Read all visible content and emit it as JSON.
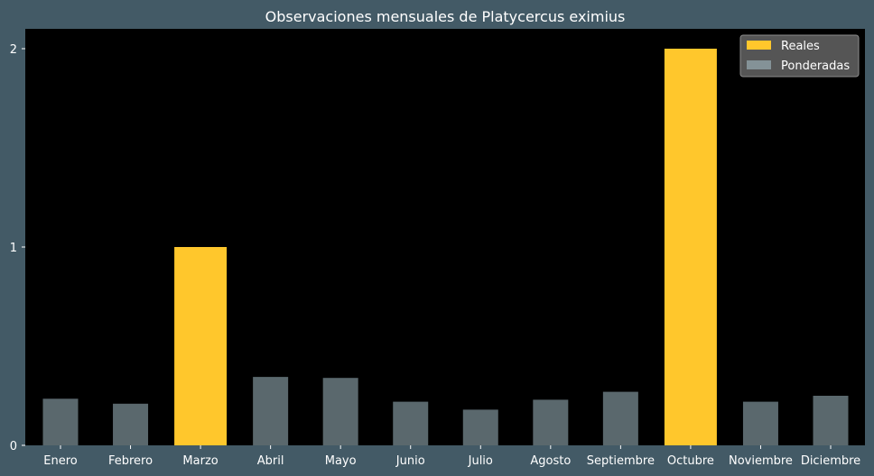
{
  "chart_data": {
    "type": "bar",
    "title": "Observaciones mensuales de Platycercus eximius",
    "xlabel": "",
    "ylabel": "",
    "categories": [
      "Enero",
      "Febrero",
      "Marzo",
      "Abril",
      "Mayo",
      "Junio",
      "Julio",
      "Agosto",
      "Septiembre",
      "Octubre",
      "Noviembre",
      "Diciembre"
    ],
    "series": [
      {
        "name": "Reales",
        "color": "#ffc72c",
        "values": [
          0,
          0,
          1,
          0,
          0,
          0,
          0,
          0,
          0,
          2,
          0,
          0
        ]
      },
      {
        "name": "Ponderadas",
        "color": "#b4cfd9",
        "values": [
          0.235,
          0.21,
          0.255,
          0.345,
          0.34,
          0.22,
          0.18,
          0.23,
          0.27,
          0.25,
          0.22,
          0.25
        ]
      }
    ],
    "ylim": [
      0,
      2.1
    ],
    "yticks": [
      0,
      1,
      2
    ],
    "grid": false,
    "legend_position": "top-right",
    "plot_background": "#000000",
    "figure_background": "#435a66"
  }
}
